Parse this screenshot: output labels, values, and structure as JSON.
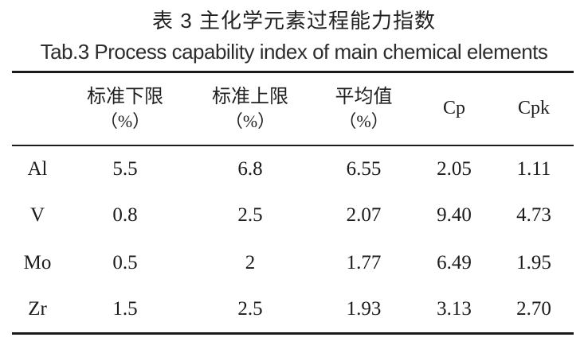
{
  "page": {
    "background": "#ffffff",
    "text_color": "#1f1f1f",
    "rule_color": "#1b1b1b"
  },
  "title": {
    "zh": "表 3 主化学元素过程能力指数",
    "en": "Tab.3 Process capability index of main chemical elements"
  },
  "table": {
    "columns": [
      {
        "label": "",
        "unit": ""
      },
      {
        "label": "标准下限",
        "unit": "（%）"
      },
      {
        "label": "标准上限",
        "unit": "（%）"
      },
      {
        "label": "平均值",
        "unit": "（%）"
      },
      {
        "label": "Cp",
        "unit": ""
      },
      {
        "label": "Cpk",
        "unit": ""
      }
    ],
    "rows": [
      [
        "Al",
        "5.5",
        "6.8",
        "6.55",
        "2.05",
        "1.11"
      ],
      [
        "V",
        "0.8",
        "2.5",
        "2.07",
        "9.40",
        "4.73"
      ],
      [
        "Mo",
        "0.5",
        "2",
        "1.77",
        "6.49",
        "1.95"
      ],
      [
        "Zr",
        "1.5",
        "2.5",
        "1.93",
        "3.13",
        "2.70"
      ]
    ]
  }
}
